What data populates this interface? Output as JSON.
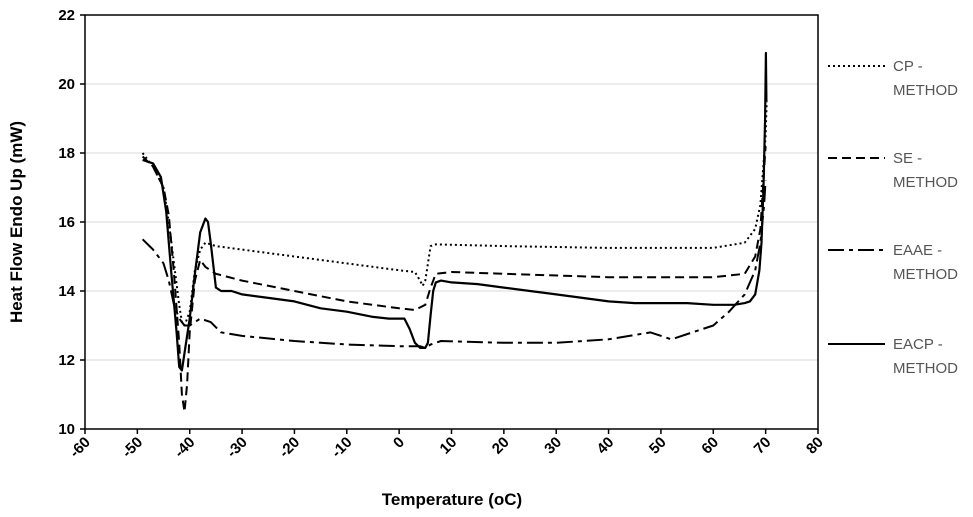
{
  "chart_data": {
    "type": "line",
    "title": "",
    "xlabel": "Temperature (oC)",
    "ylabel": "Heat Flow Endo Up (mW)",
    "xlim": [
      -60,
      80
    ],
    "ylim": [
      10,
      22
    ],
    "x_ticks": [
      "-60",
      "-50",
      "-40",
      "-30",
      "-20",
      "-10",
      "0",
      "10",
      "20",
      "30",
      "40",
      "50",
      "60",
      "70",
      "80"
    ],
    "y_ticks": [
      "10",
      "12",
      "14",
      "16",
      "18",
      "20",
      "22"
    ],
    "grid": "horizontal",
    "legend_position": "right",
    "series": [
      {
        "name": "CP - METHOD",
        "legend_lines": [
          "CP -",
          "METHOD"
        ],
        "dash": "dotted",
        "points": [
          [
            -49,
            18.0
          ],
          [
            -47,
            17.6
          ],
          [
            -45,
            17.0
          ],
          [
            -44,
            16.0
          ],
          [
            -43,
            14.8
          ],
          [
            -42,
            13.6
          ],
          [
            -41.5,
            13.1
          ],
          [
            -41,
            13.0
          ],
          [
            -40,
            13.4
          ],
          [
            -39,
            14.6
          ],
          [
            -38,
            15.2
          ],
          [
            -37,
            15.4
          ],
          [
            -35,
            15.3
          ],
          [
            -30,
            15.2
          ],
          [
            -20,
            15.0
          ],
          [
            -10,
            14.8
          ],
          [
            0,
            14.6
          ],
          [
            3,
            14.55
          ],
          [
            4,
            14.3
          ],
          [
            4.5,
            14.15
          ],
          [
            5,
            14.3
          ],
          [
            6,
            15.3
          ],
          [
            7,
            15.35
          ],
          [
            20,
            15.3
          ],
          [
            40,
            15.25
          ],
          [
            60,
            15.25
          ],
          [
            66,
            15.4
          ],
          [
            68,
            15.8
          ],
          [
            69,
            16.5
          ],
          [
            69.5,
            17.5
          ],
          [
            70,
            18.5
          ],
          [
            70.2,
            19.5
          ]
        ]
      },
      {
        "name": "SE - METHOD",
        "legend_lines": [
          "SE -",
          "METHOD"
        ],
        "dash": "dashed",
        "points": [
          [
            -49,
            17.9
          ],
          [
            -47,
            17.6
          ],
          [
            -45,
            17.0
          ],
          [
            -44,
            16.2
          ],
          [
            -43,
            14.5
          ],
          [
            -42,
            12.5
          ],
          [
            -41.5,
            11.0
          ],
          [
            -41,
            10.5
          ],
          [
            -40.5,
            11.3
          ],
          [
            -40,
            12.8
          ],
          [
            -39,
            14.3
          ],
          [
            -38,
            14.9
          ],
          [
            -37,
            14.7
          ],
          [
            -35,
            14.5
          ],
          [
            -30,
            14.3
          ],
          [
            -20,
            14.0
          ],
          [
            -10,
            13.7
          ],
          [
            0,
            13.5
          ],
          [
            3,
            13.45
          ],
          [
            5,
            13.6
          ],
          [
            6,
            14.1
          ],
          [
            7,
            14.5
          ],
          [
            10,
            14.55
          ],
          [
            20,
            14.5
          ],
          [
            40,
            14.4
          ],
          [
            60,
            14.4
          ],
          [
            66,
            14.5
          ],
          [
            68,
            15.0
          ],
          [
            69,
            15.8
          ],
          [
            69.5,
            17.0
          ],
          [
            70,
            18.2
          ]
        ]
      },
      {
        "name": "EAAE - METHOD",
        "legend_lines": [
          "EAAE -",
          "METHOD"
        ],
        "dash": "dashdot",
        "points": [
          [
            -49,
            15.5
          ],
          [
            -47,
            15.2
          ],
          [
            -45,
            14.8
          ],
          [
            -44,
            14.3
          ],
          [
            -43,
            13.6
          ],
          [
            -42,
            13.2
          ],
          [
            -41,
            13.0
          ],
          [
            -40,
            13.0
          ],
          [
            -38,
            13.2
          ],
          [
            -36,
            13.1
          ],
          [
            -34,
            12.8
          ],
          [
            -30,
            12.7
          ],
          [
            -20,
            12.55
          ],
          [
            -10,
            12.45
          ],
          [
            0,
            12.4
          ],
          [
            4,
            12.4
          ],
          [
            5,
            12.35
          ],
          [
            6,
            12.45
          ],
          [
            8,
            12.55
          ],
          [
            20,
            12.5
          ],
          [
            30,
            12.5
          ],
          [
            40,
            12.6
          ],
          [
            48,
            12.8
          ],
          [
            52,
            12.6
          ],
          [
            56,
            12.8
          ],
          [
            60,
            13.0
          ],
          [
            63,
            13.4
          ],
          [
            66,
            13.9
          ],
          [
            68,
            14.6
          ],
          [
            69,
            15.4
          ],
          [
            69.7,
            16.5
          ],
          [
            70,
            17.2
          ]
        ]
      },
      {
        "name": "EACP - METHOD",
        "legend_lines": [
          "EACP -",
          "METHOD"
        ],
        "dash": "solid",
        "points": [
          [
            -49,
            17.8
          ],
          [
            -47,
            17.7
          ],
          [
            -45.5,
            17.3
          ],
          [
            -44.5,
            16.3
          ],
          [
            -43.5,
            14.5
          ],
          [
            -42.5,
            12.8
          ],
          [
            -42,
            11.8
          ],
          [
            -41.5,
            11.7
          ],
          [
            -41,
            12.2
          ],
          [
            -40,
            13.2
          ],
          [
            -39,
            14.5
          ],
          [
            -38,
            15.7
          ],
          [
            -37,
            16.1
          ],
          [
            -36.5,
            16.0
          ],
          [
            -36,
            15.4
          ],
          [
            -35,
            14.1
          ],
          [
            -34,
            14.0
          ],
          [
            -32,
            14.0
          ],
          [
            -30,
            13.9
          ],
          [
            -25,
            13.8
          ],
          [
            -20,
            13.7
          ],
          [
            -15,
            13.5
          ],
          [
            -10,
            13.4
          ],
          [
            -5,
            13.25
          ],
          [
            -2,
            13.2
          ],
          [
            0,
            13.2
          ],
          [
            1,
            13.2
          ],
          [
            2,
            12.9
          ],
          [
            3,
            12.5
          ],
          [
            4,
            12.35
          ],
          [
            5,
            12.35
          ],
          [
            5.5,
            12.5
          ],
          [
            6,
            13.3
          ],
          [
            6.5,
            14.0
          ],
          [
            7,
            14.25
          ],
          [
            8,
            14.3
          ],
          [
            10,
            14.25
          ],
          [
            15,
            14.2
          ],
          [
            20,
            14.1
          ],
          [
            25,
            14.0
          ],
          [
            30,
            13.9
          ],
          [
            35,
            13.8
          ],
          [
            40,
            13.7
          ],
          [
            45,
            13.65
          ],
          [
            50,
            13.65
          ],
          [
            55,
            13.65
          ],
          [
            60,
            13.6
          ],
          [
            64,
            13.6
          ],
          [
            66,
            13.65
          ],
          [
            67,
            13.7
          ],
          [
            68,
            13.9
          ],
          [
            68.8,
            14.6
          ],
          [
            69.2,
            15.4
          ],
          [
            69.6,
            17.0
          ],
          [
            69.9,
            19.0
          ],
          [
            70.05,
            20.9
          ],
          [
            70.15,
            19.5
          ]
        ]
      }
    ]
  }
}
